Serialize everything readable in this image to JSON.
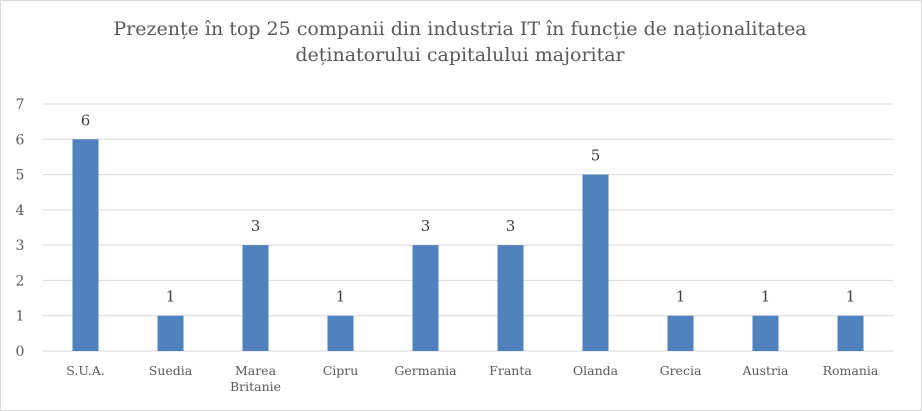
{
  "chart_data": {
    "type": "bar",
    "title": "Prezențe în top 25 companii din industria IT în funcție de naționalitatea deținatorului capitalului majoritar",
    "title_lines": [
      "Prezențe în top 25 companii din industria IT în funcție de naționalitatea",
      "deținatorului capitalului majoritar"
    ],
    "categories": [
      "S.U.A.",
      "Suedia",
      "Marea Britanie",
      "Cipru",
      "Germania",
      "Franta",
      "Olanda",
      "Grecia",
      "Austria",
      "Romania"
    ],
    "category_lines": [
      [
        "S.U.A."
      ],
      [
        "Suedia"
      ],
      [
        "Marea",
        "Britanie"
      ],
      [
        "Cipru"
      ],
      [
        "Germania"
      ],
      [
        "Franta"
      ],
      [
        "Olanda"
      ],
      [
        "Grecia"
      ],
      [
        "Austria"
      ],
      [
        "Romania"
      ]
    ],
    "values": [
      6,
      1,
      3,
      1,
      3,
      3,
      5,
      1,
      1,
      1
    ],
    "ylim": [
      0,
      7
    ],
    "yticks": [
      0,
      1,
      2,
      3,
      4,
      5,
      6,
      7
    ],
    "ytick_labels": [
      "0",
      "1",
      "2",
      "3",
      "4",
      "5",
      "6",
      "7"
    ],
    "xlabel": "",
    "ylabel": "",
    "grid": true,
    "data_labels": true,
    "legend": "none",
    "colors": {
      "bar": "#4f81bd",
      "grid": "#d9d9d9",
      "text": "#595959"
    }
  }
}
